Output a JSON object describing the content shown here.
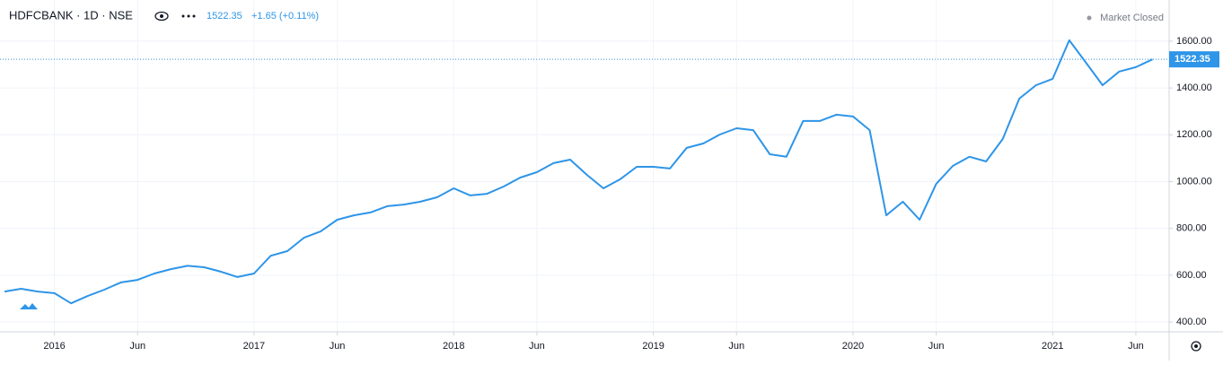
{
  "chart_data": {
    "type": "line",
    "title": "HDFCBANK · 1D · NSE",
    "last_price": 1522.35,
    "change": "+1.65 (+0.11%)",
    "status": "Market Closed",
    "color": "#2e95e8",
    "grid": true,
    "x": [
      "2015-10",
      "2015-11",
      "2015-12",
      "2016-01",
      "2016-02",
      "2016-03",
      "2016-04",
      "2016-05",
      "2016-06",
      "2016-07",
      "2016-08",
      "2016-09",
      "2016-10",
      "2016-11",
      "2016-12",
      "2017-01",
      "2017-02",
      "2017-03",
      "2017-04",
      "2017-05",
      "2017-06",
      "2017-07",
      "2017-08",
      "2017-09",
      "2017-10",
      "2017-11",
      "2017-12",
      "2018-01",
      "2018-02",
      "2018-03",
      "2018-04",
      "2018-05",
      "2018-06",
      "2018-07",
      "2018-08",
      "2018-09",
      "2018-10",
      "2018-11",
      "2018-12",
      "2019-01",
      "2019-02",
      "2019-03",
      "2019-04",
      "2019-05",
      "2019-06",
      "2019-07",
      "2019-08",
      "2019-09",
      "2019-10",
      "2019-11",
      "2019-12",
      "2020-01",
      "2020-02",
      "2020-03",
      "2020-04",
      "2020-05",
      "2020-06",
      "2020-07",
      "2020-08",
      "2020-09",
      "2020-10",
      "2020-11",
      "2020-12",
      "2021-01",
      "2021-02",
      "2021-03",
      "2021-04",
      "2021-05",
      "2021-06",
      "2021-07"
    ],
    "values": [
      530,
      542,
      530,
      523,
      480,
      511,
      538,
      569,
      580,
      607,
      626,
      640,
      634,
      615,
      592,
      607,
      683,
      703,
      760,
      787,
      837,
      856,
      868,
      895,
      902,
      914,
      933,
      971,
      941,
      948,
      979,
      1017,
      1040,
      1079,
      1094,
      1029,
      971,
      1010,
      1063,
      1063,
      1056,
      1144,
      1163,
      1201,
      1228,
      1220,
      1117,
      1106,
      1259,
      1259,
      1286,
      1278,
      1220,
      856,
      914,
      837,
      990,
      1067,
      1106,
      1086,
      1182,
      1355,
      1412,
      1439,
      1604,
      1508,
      1412,
      1470,
      1489,
      1522.35
    ],
    "xlim": [
      "2015-10",
      "2021-08"
    ],
    "xticks": [
      {
        "value": "2016-01",
        "label": "2016"
      },
      {
        "value": "2016-06",
        "label": "Jun"
      },
      {
        "value": "2017-01",
        "label": "2017"
      },
      {
        "value": "2017-06",
        "label": "Jun"
      },
      {
        "value": "2018-01",
        "label": "2018"
      },
      {
        "value": "2018-06",
        "label": "Jun"
      },
      {
        "value": "2019-01",
        "label": "2019"
      },
      {
        "value": "2019-06",
        "label": "Jun"
      },
      {
        "value": "2020-01",
        "label": "2020"
      },
      {
        "value": "2020-06",
        "label": "Jun"
      },
      {
        "value": "2021-01",
        "label": "2021"
      },
      {
        "value": "2021-06",
        "label": "Jun"
      }
    ],
    "ylim": [
      358,
      1776
    ],
    "yticks": [
      {
        "value": 400,
        "label": "400.00"
      },
      {
        "value": 600,
        "label": "600.00"
      },
      {
        "value": 800,
        "label": "800.00"
      },
      {
        "value": 1000,
        "label": "1000.00"
      },
      {
        "value": 1200,
        "label": "1200.00"
      },
      {
        "value": 1400,
        "label": "1400.00"
      },
      {
        "value": 1600,
        "label": "1600.00"
      }
    ]
  }
}
